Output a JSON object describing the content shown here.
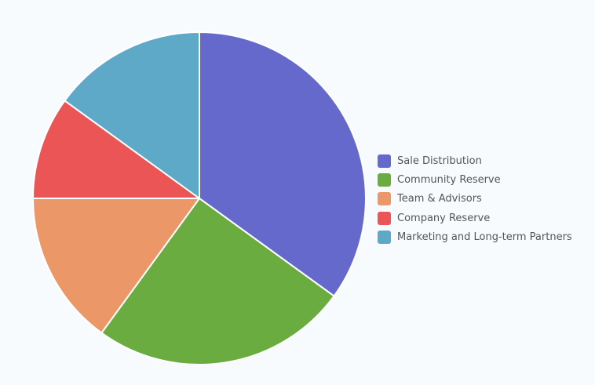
{
  "chart_data": {
    "type": "pie",
    "categories": [
      "Sale Distribution",
      "Community Reserve",
      "Team & Advisors",
      "Company Reserve",
      "Marketing and Long-term Partners"
    ],
    "values": [
      35,
      25,
      15,
      10,
      15
    ],
    "colors": [
      "#6669cc",
      "#6aac3f",
      "#ec9767",
      "#ec5555",
      "#5ea8c8"
    ],
    "legend_position": "right",
    "slice_border_color": "#ffffff"
  }
}
